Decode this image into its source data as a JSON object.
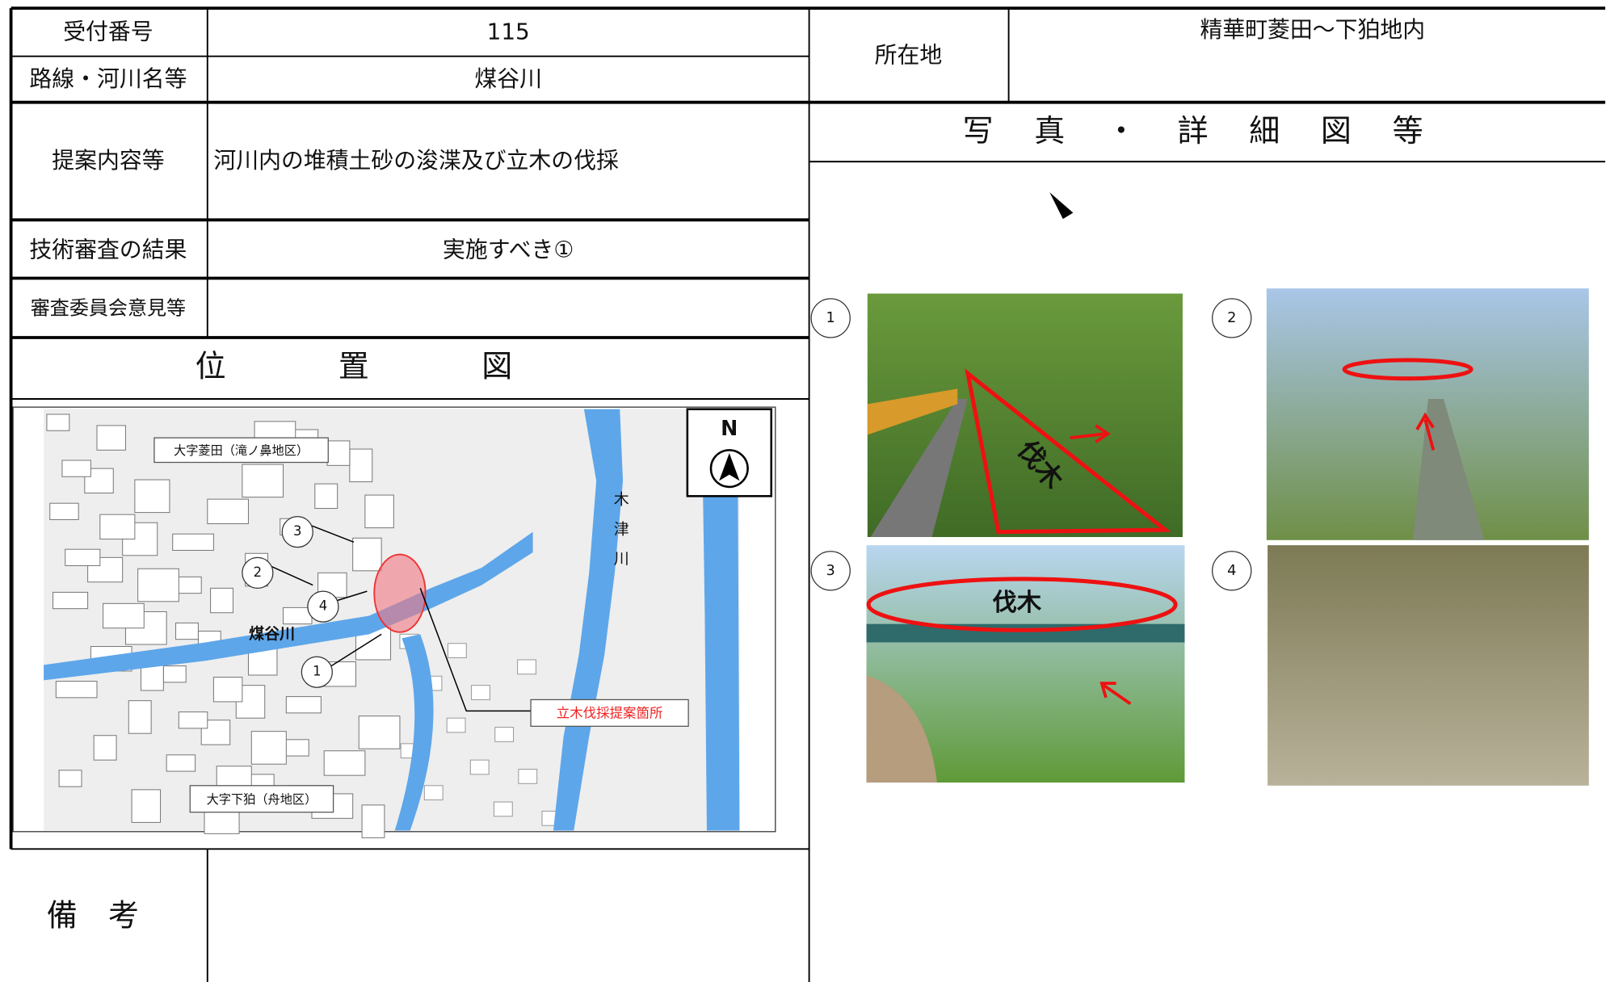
{
  "form": {
    "reception_number": {
      "label": "受付番号",
      "value": "115"
    },
    "route_river": {
      "label": "路線・河川名等",
      "value": "煤谷川"
    },
    "location": {
      "label": "所在地",
      "value": "精華町菱田～下狛地内"
    },
    "proposal": {
      "label": "提案内容等",
      "value": "河川内の堆積土砂の浚渫及び立木の伐採"
    },
    "review": {
      "label": "技術審査の結果",
      "value": "実施すべき①"
    },
    "committee": {
      "label": "審査委員会意見等"
    },
    "remarks": {
      "label": "備考"
    }
  },
  "map": {
    "title": "位置図",
    "north": "N",
    "area_north": "大字菱田（滝ノ鼻地区）",
    "area_south": "大字下狛（舟地区）",
    "river": "煤谷川",
    "main_river": "木津川",
    "proposal_site": "立木伐採提案箇所",
    "points": [
      "1",
      "2",
      "3",
      "4"
    ]
  },
  "photos": {
    "title": "写真・詳細図等",
    "items": [
      {
        "number": "1",
        "annotation": "伐木"
      },
      {
        "number": "2"
      },
      {
        "number": "3",
        "annotation": "伐木"
      },
      {
        "number": "4"
      }
    ]
  }
}
